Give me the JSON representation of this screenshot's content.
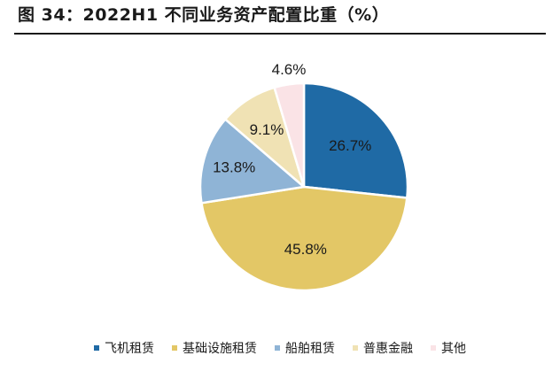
{
  "title": "图 34：2022H1 不同业务资产配置比重（%）",
  "chart_data": {
    "type": "pie",
    "title": "图 34：2022H1 不同业务资产配置比重（%）",
    "slices": [
      {
        "label": "飞机租赁",
        "value": 26.7,
        "value_label": "26.7%",
        "color": "#1f6aa5"
      },
      {
        "label": "基础设施租赁",
        "value": 45.8,
        "value_label": "45.8%",
        "color": "#e3c766"
      },
      {
        "label": "船舶租赁",
        "value": 13.8,
        "value_label": "13.8%",
        "color": "#8fb4d6"
      },
      {
        "label": "普惠金融",
        "value": 9.1,
        "value_label": "9.1%",
        "color": "#f0e2b4"
      },
      {
        "label": "其他",
        "value": 4.6,
        "value_label": "4.6%",
        "color": "#fae3e6"
      }
    ],
    "legend_position": "bottom"
  }
}
